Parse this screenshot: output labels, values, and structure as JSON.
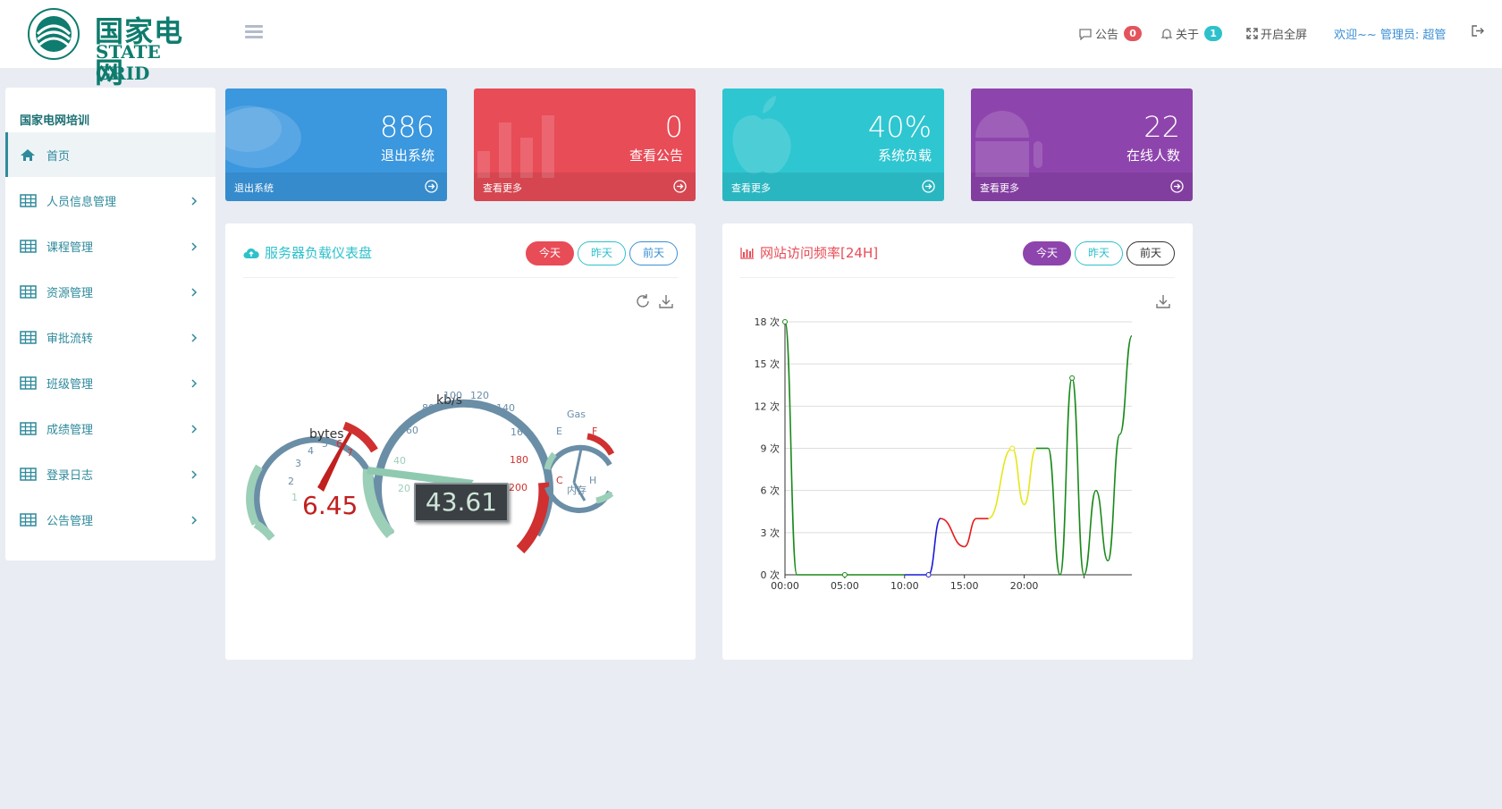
{
  "header": {
    "logo_cn": "国家电网",
    "logo_en": "STATE GRID",
    "notice_label": "公告",
    "notice_count": "0",
    "about_label": "关于",
    "about_count": "1",
    "fullscreen_label": "开启全屏",
    "user_text": "欢迎~~ 管理员: 超管"
  },
  "sidebar": {
    "title": "国家电网培训",
    "items": [
      {
        "label": "首页",
        "icon": "home-icon"
      },
      {
        "label": "人员信息管理",
        "icon": "table-icon"
      },
      {
        "label": "课程管理",
        "icon": "table-icon"
      },
      {
        "label": "资源管理",
        "icon": "table-icon"
      },
      {
        "label": "审批流转",
        "icon": "table-icon"
      },
      {
        "label": "班级管理",
        "icon": "table-icon"
      },
      {
        "label": "成绩管理",
        "icon": "table-icon"
      },
      {
        "label": "登录日志",
        "icon": "table-icon"
      },
      {
        "label": "公告管理",
        "icon": "table-icon"
      }
    ]
  },
  "cards": [
    {
      "value": "886",
      "label": "退出系统",
      "footer": "退出系统",
      "color": "#3b97de",
      "icon": "chat-bubble-icon"
    },
    {
      "value": "0",
      "label": "查看公告",
      "footer": "查看更多",
      "color": "#e84c57",
      "icon": "bar-chart-icon"
    },
    {
      "value": "40%",
      "label": "系统负载",
      "footer": "查看更多",
      "color": "#2ec6d1",
      "icon": "apple-icon"
    },
    {
      "value": "22",
      "label": "在线人数",
      "footer": "查看更多",
      "color": "#8e44ad",
      "icon": "android-icon"
    }
  ],
  "gauge_panel": {
    "title": "服务器负载仪表盘",
    "tabs": [
      "今天",
      "昨天",
      "前天"
    ],
    "speed_unit": "kb/s",
    "speed_value": "43.61",
    "speed_ticks": [
      "20",
      "40",
      "60",
      "80",
      "100",
      "120",
      "140",
      "160",
      "180",
      "200"
    ],
    "rpm_unit": "bytes",
    "rpm_value": "6.45",
    "rpm_ticks": [
      "1",
      "2",
      "3",
      "4",
      "5",
      "6",
      "7"
    ],
    "gas_label": "Gas",
    "mem_label": "内存",
    "gas_ticks": [
      "E",
      "F"
    ],
    "mem_ticks": [
      "C",
      "H"
    ]
  },
  "traffic_panel": {
    "title": "网站访问频率[24H]",
    "tabs": [
      "今天",
      "昨天",
      "前天"
    ]
  },
  "chart_data": {
    "type": "line",
    "title": "网站访问频率[24H]",
    "y_ticks": [
      "0 次",
      "3 次",
      "6 次",
      "9 次",
      "12 次",
      "15 次",
      "18 次"
    ],
    "x_ticks": [
      "00:00",
      "05:00",
      "10:00",
      "15:00",
      "20:00"
    ],
    "ylim": [
      0,
      18
    ],
    "xlim": [
      0,
      29
    ],
    "x": [
      0,
      1,
      5,
      10,
      12,
      13,
      15,
      16,
      17,
      19,
      20,
      21,
      22,
      23,
      24,
      25,
      26,
      27,
      28,
      29
    ],
    "values": [
      18,
      0,
      0,
      0,
      0,
      4,
      2,
      4,
      4,
      9,
      5,
      9,
      9,
      0,
      14,
      0,
      6,
      1,
      10,
      17
    ],
    "segment_colors": [
      "#1a8a1a",
      "#1a8a1a",
      "#1a8a1a",
      "#1a1ad6",
      "#1a1ad6",
      "#e61a1a",
      "#e61a1a",
      "#e61a1a",
      "#e6e61a",
      "#e6e61a",
      "#e6e61a",
      "#1a8a1a",
      "#1a8a1a",
      "#1a8a1a",
      "#1a8a1a",
      "#1a8a1a",
      "#1a8a1a",
      "#1a8a1a",
      "#1a8a1a"
    ]
  }
}
